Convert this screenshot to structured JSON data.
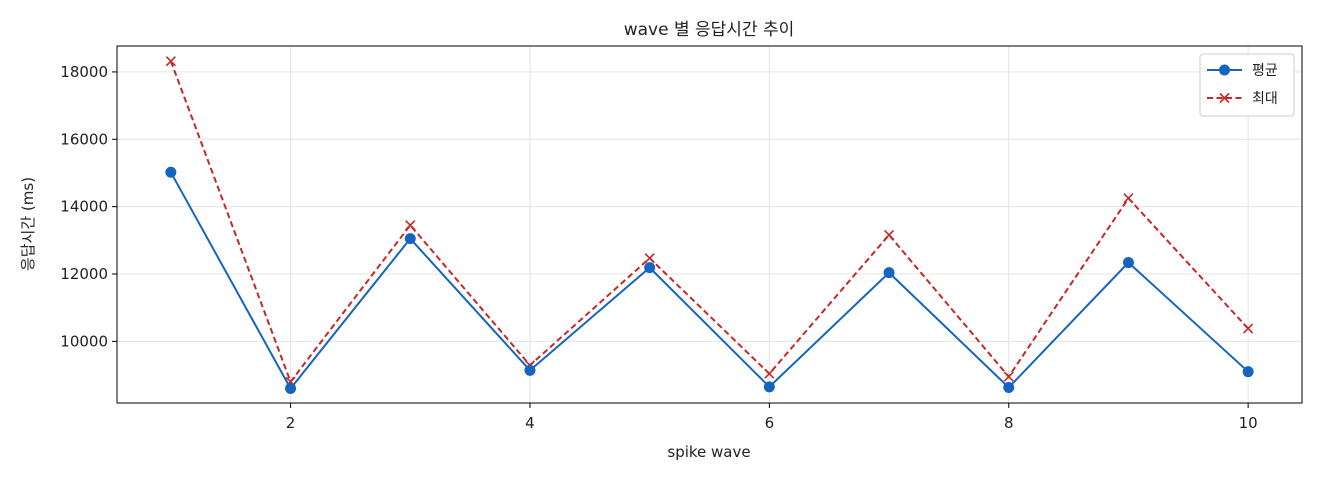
{
  "chart_data": {
    "type": "line",
    "title": "wave 별 응답시간 추이",
    "xlabel": "spike wave",
    "ylabel": "응답시간 (ms)",
    "x": [
      1,
      2,
      3,
      4,
      5,
      6,
      7,
      8,
      9,
      10
    ],
    "xlim": [
      0.55,
      10.45
    ],
    "ylim": [
      8170,
      18770
    ],
    "xticks": [
      2,
      4,
      6,
      8,
      10
    ],
    "yticks": [
      10000,
      12000,
      14000,
      16000,
      18000
    ],
    "grid": true,
    "legend_position": "top-right",
    "series": [
      {
        "name": "평균",
        "color": "#1565c0",
        "line_style": "solid",
        "marker": "circle",
        "values": [
          15020,
          8600,
          13050,
          9140,
          12190,
          8650,
          12040,
          8630,
          12340,
          9100
        ]
      },
      {
        "name": "최대",
        "color": "#c62828",
        "line_style": "dashed",
        "marker": "x",
        "values": [
          18320,
          8800,
          13450,
          9290,
          12470,
          9040,
          13160,
          8950,
          14250,
          10380
        ]
      }
    ]
  }
}
